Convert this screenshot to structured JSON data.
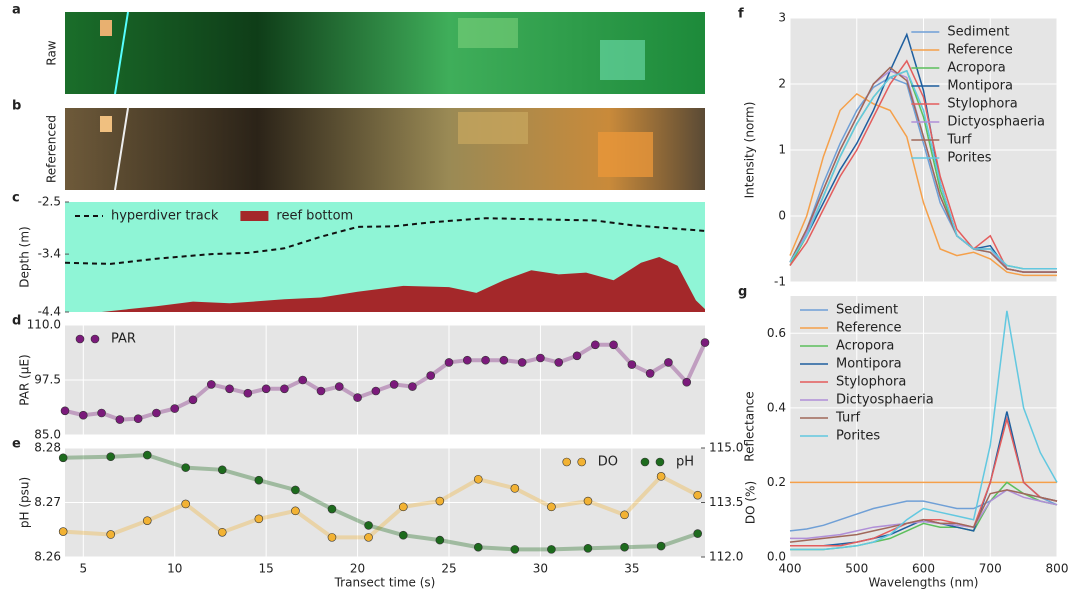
{
  "images": [
    {
      "label": "a",
      "title": "Raw"
    },
    {
      "label": "b",
      "title": "Referenced"
    }
  ],
  "chart_data": [
    {
      "type": "line",
      "label": "c",
      "ylabel": "Depth (m)",
      "xlim": [
        4,
        39
      ],
      "ylim": [
        -4.4,
        -2.5
      ],
      "yticks": [
        -2.5,
        -3.4,
        -4.4
      ],
      "background": "#8ff5d6",
      "legend": "upper left",
      "legend_ncol": 2,
      "series": [
        {
          "name": "hyperdiver track",
          "style": "dashed",
          "color": "#111111",
          "x": [
            4,
            6.5,
            9,
            12,
            14,
            16,
            18,
            20,
            22,
            24,
            27,
            30,
            33,
            35,
            37,
            39
          ],
          "values": [
            -3.55,
            -3.57,
            -3.48,
            -3.4,
            -3.38,
            -3.3,
            -3.1,
            -2.93,
            -2.92,
            -2.85,
            -2.78,
            -2.8,
            -2.82,
            -2.9,
            -2.95,
            -3.0
          ]
        },
        {
          "name": "reef bottom",
          "style": "area",
          "color": "#a4282a",
          "x": [
            4,
            6,
            9,
            11,
            13,
            16,
            18,
            20,
            22.5,
            25,
            26.5,
            28,
            29.5,
            31,
            32.5,
            34,
            35.5,
            36.5,
            37.5,
            38.5,
            39
          ],
          "values": [
            -4.4,
            -4.4,
            -4.3,
            -4.22,
            -4.25,
            -4.18,
            -4.15,
            -4.05,
            -3.95,
            -3.97,
            -4.07,
            -3.85,
            -3.68,
            -3.75,
            -3.72,
            -3.85,
            -3.55,
            -3.45,
            -3.6,
            -4.2,
            -4.35
          ]
        }
      ]
    },
    {
      "type": "line",
      "label": "d",
      "ylabel": "PAR (μE)",
      "xlim": [
        4,
        39
      ],
      "xticks": [
        5,
        10,
        15,
        20,
        25,
        30,
        35
      ],
      "xtick_labels": false,
      "ylim": [
        85,
        110
      ],
      "yticks": [
        {
          "value": 85,
          "label": "85.0"
        },
        97.5,
        {
          "value": 110,
          "label": "110.0"
        }
      ],
      "grid": true,
      "legend": "upper left",
      "series": [
        {
          "name": "PAR",
          "style": "markers-line",
          "color": "#7b1a7b",
          "x": [
            4,
            5,
            6,
            7,
            8,
            9,
            10,
            11,
            12,
            13,
            14,
            15,
            16,
            17,
            18,
            19,
            20,
            21,
            22,
            23,
            24,
            25,
            26,
            27,
            28,
            29,
            30,
            31,
            32,
            33,
            34,
            35,
            36,
            37,
            38,
            39
          ],
          "values": [
            90.5,
            89.5,
            90,
            88.5,
            88.7,
            90,
            91,
            93,
            96.5,
            95.5,
            94.5,
            95.5,
            95.5,
            97.5,
            95,
            96,
            93.5,
            95,
            96.5,
            96,
            98.5,
            101.5,
            102,
            102,
            102,
            101.5,
            102.5,
            101.5,
            103,
            105.5,
            105.5,
            101,
            99,
            101.5,
            97,
            106
          ]
        }
      ]
    },
    {
      "type": "line",
      "label": "e",
      "xlabel": "Transect time (s)",
      "ylabel": "pH (psu)",
      "y2label": "DO (%)",
      "xlim": [
        4,
        39
      ],
      "xticks": [
        5,
        10,
        15,
        20,
        25,
        30,
        35
      ],
      "ylim": [
        8.26,
        8.28
      ],
      "yticks": [
        8.26,
        8.27,
        8.28
      ],
      "y2lim": [
        112,
        115
      ],
      "y2ticks": [
        {
          "value": 112,
          "label": "112.0"
        },
        113.5,
        {
          "value": 115,
          "label": "115.0"
        }
      ],
      "grid": true,
      "legend": "upper right",
      "legend_ncol": 2,
      "series": [
        {
          "name": "DO",
          "style": "markers-line",
          "axis": "y2",
          "color": "#f2b233",
          "x": [
            3.9,
            6.5,
            8.5,
            10.6,
            12.6,
            14.6,
            16.6,
            18.6,
            20.6,
            22.5,
            24.5,
            26.6,
            28.6,
            30.6,
            32.6,
            34.6,
            36.6,
            38.6
          ],
          "values": [
            112.7,
            112.62,
            113.0,
            113.46,
            112.68,
            113.05,
            113.27,
            112.54,
            112.54,
            113.38,
            113.54,
            114.14,
            113.89,
            113.38,
            113.54,
            113.16,
            114.22,
            113.7
          ]
        },
        {
          "name": "pH",
          "style": "markers-line",
          "color": "#1d6b1d",
          "x": [
            3.9,
            6.5,
            8.5,
            10.6,
            12.6,
            14.6,
            16.6,
            18.6,
            20.6,
            22.5,
            24.5,
            26.6,
            28.6,
            30.6,
            32.6,
            34.6,
            36.6,
            38.6
          ],
          "values": [
            8.2782,
            8.2784,
            8.2787,
            8.2764,
            8.276,
            8.2741,
            8.2723,
            8.2688,
            8.2658,
            8.264,
            8.2631,
            8.2618,
            8.2614,
            8.2614,
            8.2616,
            8.2618,
            8.262,
            8.2643
          ]
        }
      ]
    },
    {
      "type": "line",
      "label": "f",
      "ylabel": "Intensity (norm)",
      "xlim": [
        400,
        800
      ],
      "xticks": [
        400,
        500,
        600,
        700,
        800
      ],
      "xtick_labels": false,
      "ylim": [
        -1,
        3
      ],
      "yticks": [
        -1,
        0,
        1,
        2,
        3
      ],
      "grid": true,
      "legend": "upper right",
      "x": [
        400,
        425,
        450,
        475,
        500,
        525,
        550,
        575,
        600,
        625,
        650,
        675,
        700,
        725,
        750,
        775,
        800
      ],
      "series": [
        {
          "name": "Sediment",
          "color": "#6f9fd6",
          "values": [
            -0.7,
            -0.2,
            0.5,
            1.1,
            1.6,
            1.95,
            2.1,
            2.0,
            1.1,
            0.2,
            -0.3,
            -0.5,
            -0.55,
            -0.8,
            -0.85,
            -0.85,
            -0.85
          ]
        },
        {
          "name": "Reference",
          "color": "#f5a04a",
          "values": [
            -0.6,
            0,
            0.9,
            1.6,
            1.85,
            1.7,
            1.6,
            1.2,
            0.2,
            -0.5,
            -0.6,
            -0.55,
            -0.65,
            -0.85,
            -0.9,
            -0.9,
            -0.9
          ]
        },
        {
          "name": "Acropora",
          "color": "#5cbf5c",
          "values": [
            -0.75,
            -0.3,
            0.3,
            0.9,
            1.4,
            1.8,
            2.1,
            2.2,
            1.5,
            0.4,
            -0.3,
            -0.5,
            -0.5,
            -0.75,
            -0.8,
            -0.8,
            -0.8
          ]
        },
        {
          "name": "Montipora",
          "color": "#1f5f9f",
          "values": [
            -0.7,
            -0.3,
            0.2,
            0.7,
            1.1,
            1.6,
            2.2,
            2.75,
            1.9,
            0.5,
            -0.3,
            -0.5,
            -0.45,
            -0.8,
            -0.85,
            -0.85,
            -0.85
          ]
        },
        {
          "name": "Stylophora",
          "color": "#e35d5d",
          "values": [
            -0.75,
            -0.4,
            0.1,
            0.6,
            1.0,
            1.5,
            2.0,
            2.35,
            1.8,
            0.6,
            -0.2,
            -0.5,
            -0.3,
            -0.8,
            -0.85,
            -0.85,
            -0.85
          ]
        },
        {
          "name": "Dictyosphaeria",
          "color": "#b08fd8",
          "values": [
            -0.7,
            -0.25,
            0.4,
            1.0,
            1.5,
            2.0,
            2.2,
            2.1,
            1.2,
            0.3,
            -0.3,
            -0.5,
            -0.5,
            -0.8,
            -0.85,
            -0.85,
            -0.85
          ]
        },
        {
          "name": "Turf",
          "color": "#a0685a",
          "values": [
            -0.7,
            -0.2,
            0.4,
            1.0,
            1.5,
            2.0,
            2.25,
            2.05,
            1.2,
            0.3,
            -0.3,
            -0.5,
            -0.55,
            -0.8,
            -0.85,
            -0.85,
            -0.85
          ]
        },
        {
          "name": "Porites",
          "color": "#62c8e0",
          "values": [
            -0.7,
            -0.3,
            0.3,
            0.9,
            1.4,
            1.8,
            2.1,
            2.2,
            1.6,
            0.5,
            -0.3,
            -0.5,
            -0.5,
            -0.75,
            -0.8,
            -0.8,
            -0.8
          ]
        }
      ]
    },
    {
      "type": "line",
      "label": "g",
      "xlabel": "Wavelengths (nm)",
      "ylabel": "Reflectance",
      "xlim": [
        400,
        800
      ],
      "xticks": [
        400,
        500,
        600,
        700,
        800
      ],
      "ylim": [
        0,
        0.7
      ],
      "yticks": [
        {
          "value": 0,
          "label": "0.0"
        },
        0.2,
        0.4,
        0.6
      ],
      "grid": true,
      "legend": "upper left",
      "x": [
        400,
        425,
        450,
        475,
        500,
        525,
        550,
        575,
        600,
        625,
        650,
        675,
        700,
        725,
        750,
        775,
        800
      ],
      "series": [
        {
          "name": "Sediment",
          "color": "#6f9fd6",
          "values": [
            0.07,
            0.075,
            0.085,
            0.1,
            0.115,
            0.13,
            0.14,
            0.15,
            0.15,
            0.14,
            0.13,
            0.13,
            0.15,
            0.18,
            0.17,
            0.16,
            0.14
          ]
        },
        {
          "name": "Reference",
          "color": "#f5a04a",
          "values": [
            0.2,
            0.2,
            0.2,
            0.2,
            0.2,
            0.2,
            0.2,
            0.2,
            0.2,
            0.2,
            0.2,
            0.2,
            0.2,
            0.2,
            0.2,
            0.2,
            0.2
          ]
        },
        {
          "name": "Acropora",
          "color": "#5cbf5c",
          "values": [
            0.02,
            0.02,
            0.02,
            0.025,
            0.03,
            0.04,
            0.05,
            0.07,
            0.09,
            0.08,
            0.08,
            0.07,
            0.15,
            0.2,
            0.17,
            0.15,
            0.14
          ]
        },
        {
          "name": "Montipora",
          "color": "#1f5f9f",
          "values": [
            0.03,
            0.03,
            0.03,
            0.035,
            0.04,
            0.05,
            0.06,
            0.08,
            0.1,
            0.09,
            0.08,
            0.07,
            0.2,
            0.39,
            0.2,
            0.16,
            0.15
          ]
        },
        {
          "name": "Stylophora",
          "color": "#e35d5d",
          "values": [
            0.03,
            0.03,
            0.03,
            0.03,
            0.04,
            0.05,
            0.07,
            0.09,
            0.1,
            0.1,
            0.09,
            0.08,
            0.2,
            0.37,
            0.2,
            0.16,
            0.15
          ]
        },
        {
          "name": "Dictyosphaeria",
          "color": "#b08fd8",
          "values": [
            0.05,
            0.05,
            0.055,
            0.06,
            0.07,
            0.08,
            0.085,
            0.09,
            0.095,
            0.09,
            0.085,
            0.08,
            0.15,
            0.18,
            0.16,
            0.15,
            0.14
          ]
        },
        {
          "name": "Turf",
          "color": "#a0685a",
          "values": [
            0.04,
            0.045,
            0.05,
            0.055,
            0.06,
            0.07,
            0.08,
            0.09,
            0.1,
            0.09,
            0.09,
            0.08,
            0.17,
            0.18,
            0.17,
            0.16,
            0.15
          ]
        },
        {
          "name": "Porites",
          "color": "#62c8e0",
          "values": [
            0.02,
            0.02,
            0.02,
            0.025,
            0.03,
            0.04,
            0.06,
            0.1,
            0.13,
            0.12,
            0.11,
            0.1,
            0.3,
            0.66,
            0.4,
            0.28,
            0.2
          ]
        }
      ]
    }
  ]
}
